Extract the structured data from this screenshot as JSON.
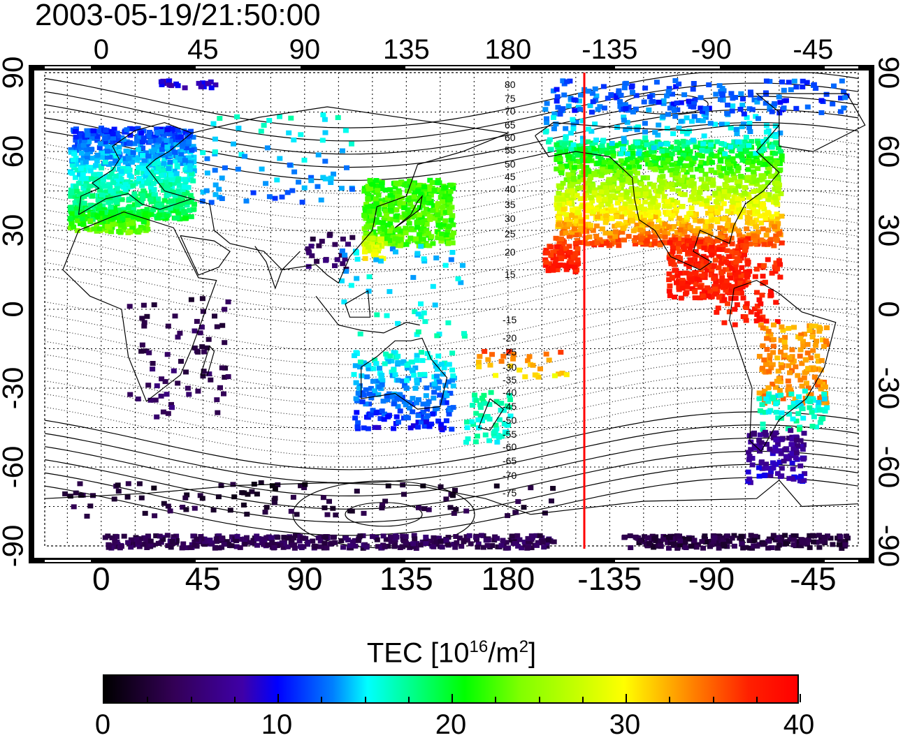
{
  "title": "2003-05-19/21:50:00",
  "map": {
    "lon_ticks": [
      "0",
      "45",
      "90",
      "135",
      "180",
      "-135",
      "-90",
      "-45"
    ],
    "lat_ticks": [
      "90",
      "60",
      "30",
      "0",
      "-30",
      "-60",
      "-90"
    ],
    "contour_labels": [
      "80",
      "75",
      "70",
      "65",
      "60",
      "55",
      "50",
      "45",
      "40",
      "35",
      "30",
      "25",
      "20",
      "15",
      "-15",
      "-20",
      "-25",
      "-30",
      "-35",
      "-40",
      "-45",
      "-50",
      "-55",
      "-60",
      "-65",
      "-70",
      "-75"
    ],
    "terminator_color": "#ff0000",
    "lon_range": [
      -25,
      335
    ],
    "lat_range": [
      -90,
      90
    ]
  },
  "colorbar": {
    "title_prefix": "TEC  [10",
    "title_exp1": "16",
    "title_mid": "/m",
    "title_exp2": "2",
    "title_suffix": "]",
    "labels": [
      "0",
      "10",
      "20",
      "30",
      "40"
    ],
    "min": 0,
    "max": 40
  }
}
